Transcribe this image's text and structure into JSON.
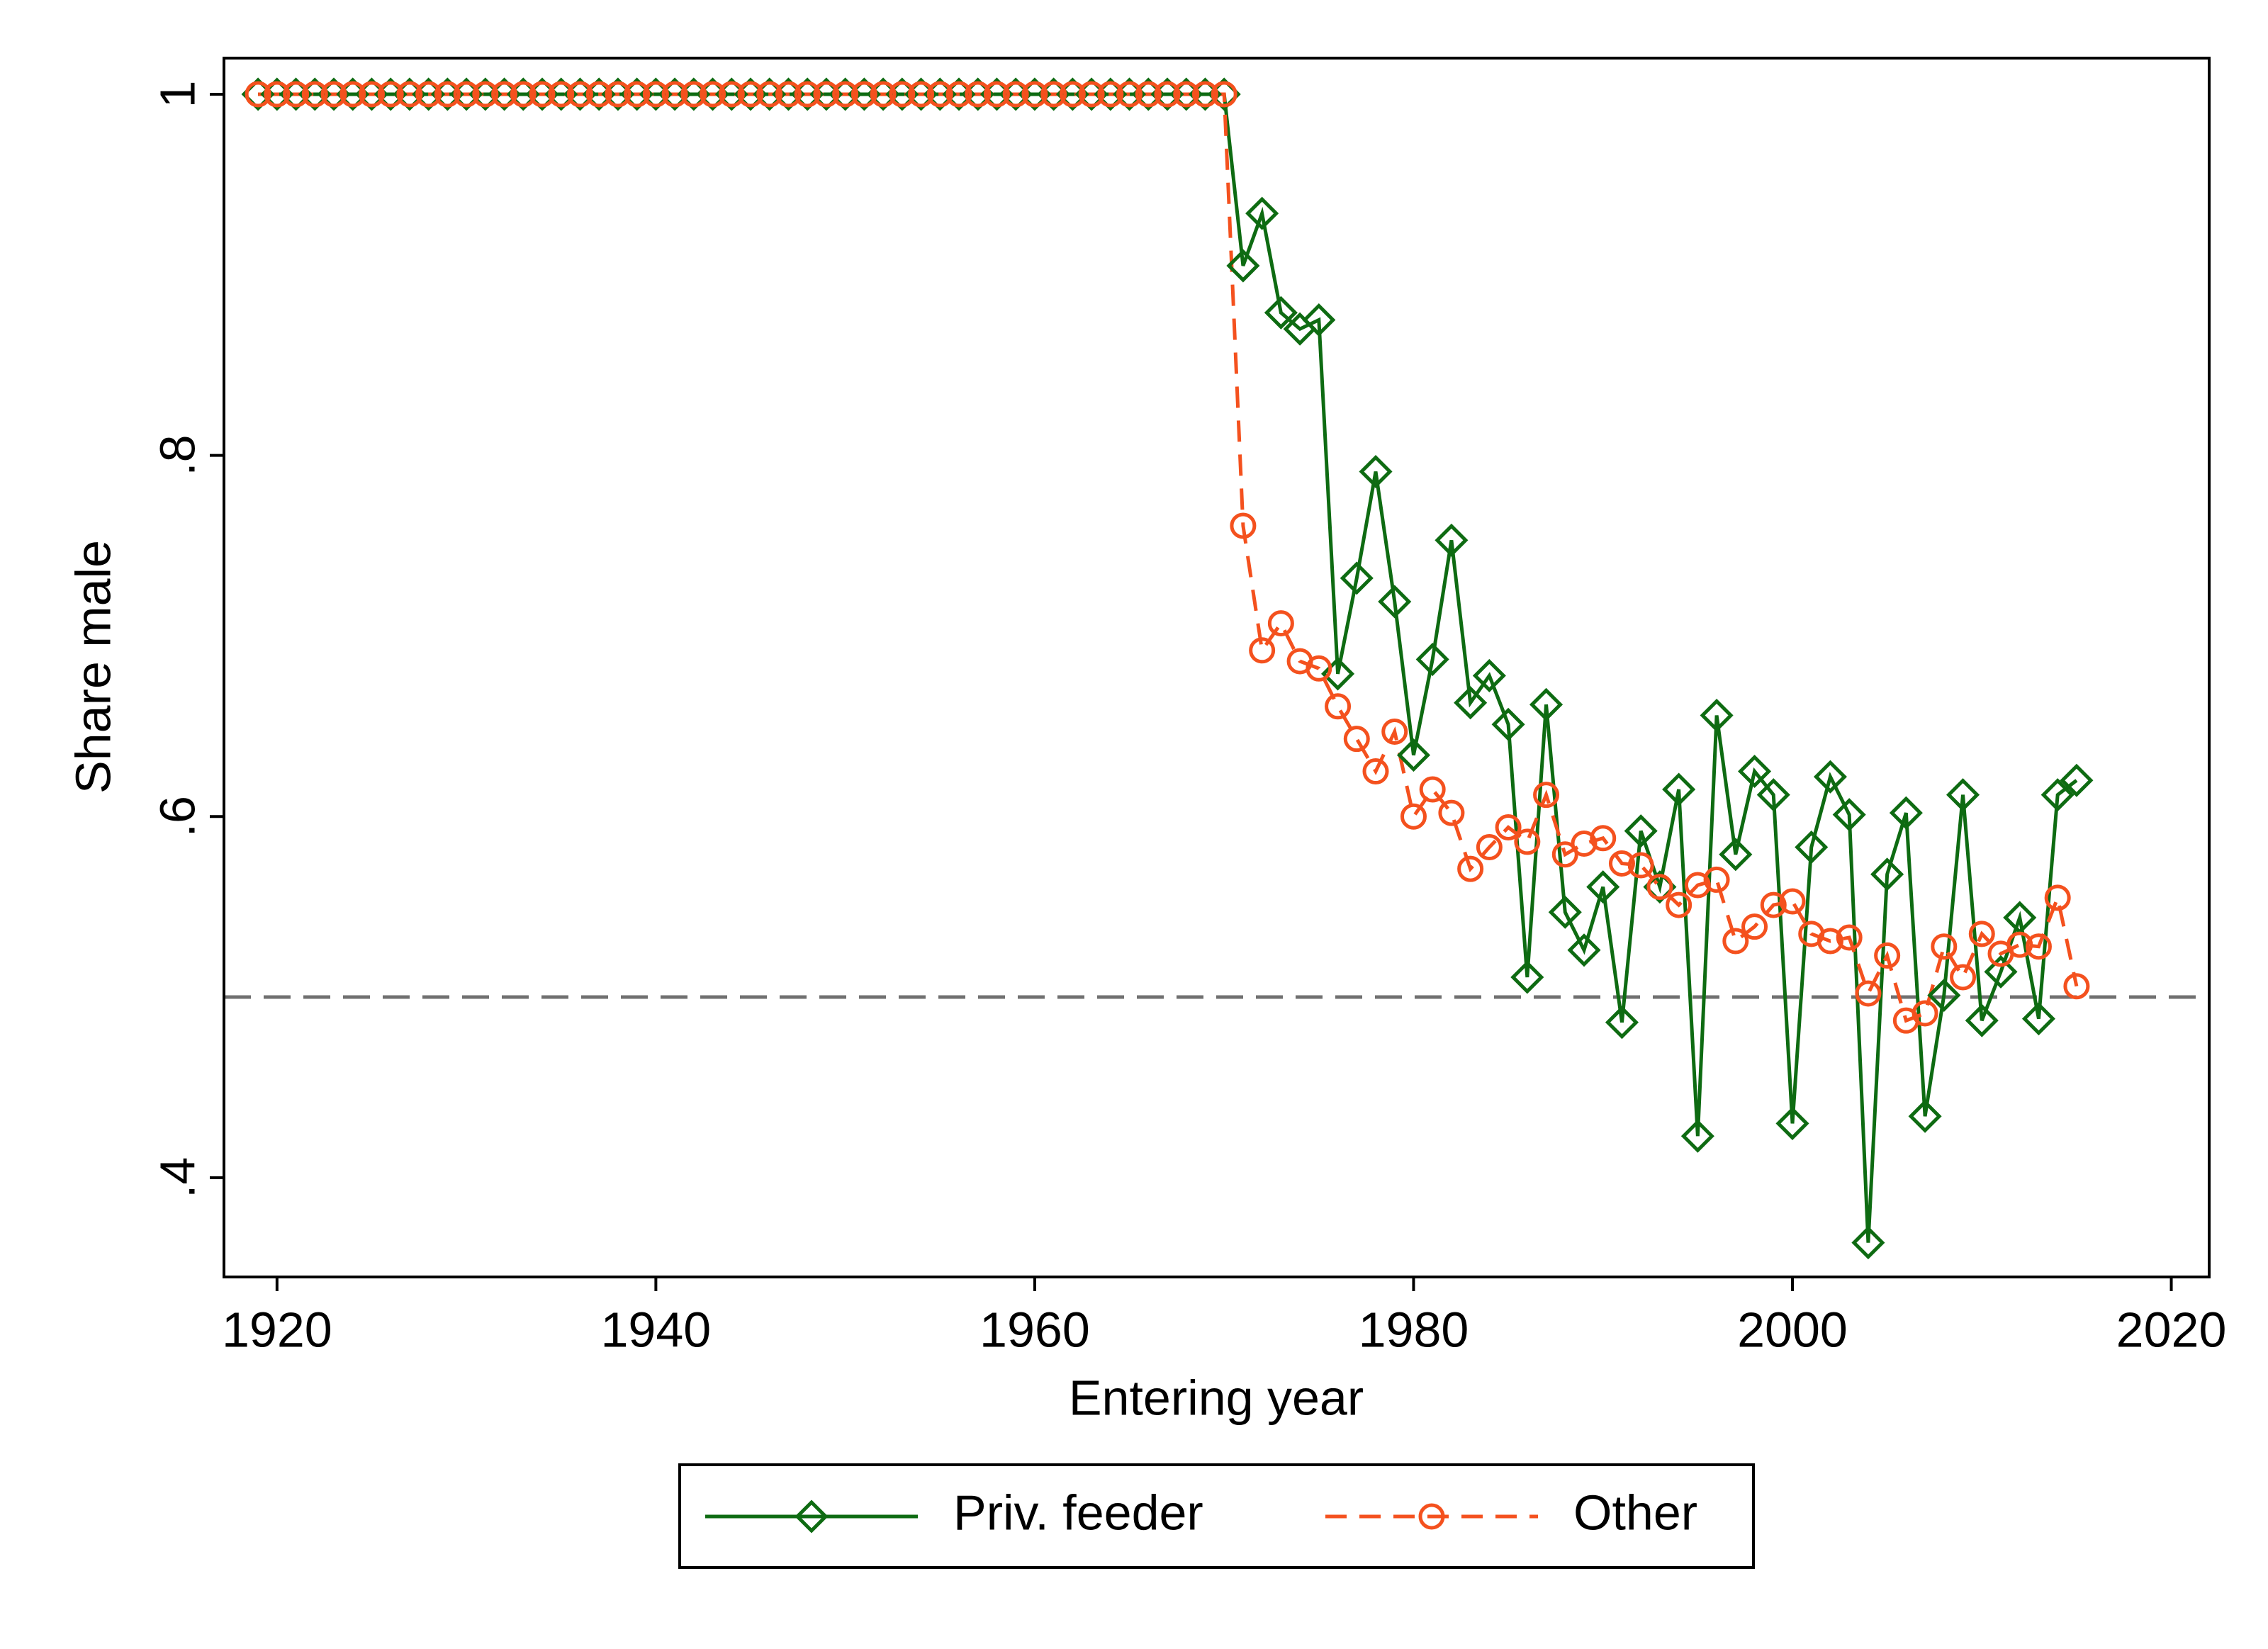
{
  "chart_data": {
    "type": "line",
    "x_label": "Entering year",
    "y_label": "Share male",
    "x": [
      1919,
      1920,
      1921,
      1922,
      1923,
      1924,
      1925,
      1926,
      1927,
      1928,
      1929,
      1930,
      1931,
      1932,
      1933,
      1934,
      1935,
      1936,
      1937,
      1938,
      1939,
      1940,
      1941,
      1942,
      1943,
      1944,
      1945,
      1946,
      1947,
      1948,
      1949,
      1950,
      1951,
      1952,
      1953,
      1954,
      1955,
      1956,
      1957,
      1958,
      1959,
      1960,
      1961,
      1962,
      1963,
      1964,
      1965,
      1966,
      1967,
      1968,
      1969,
      1970,
      1971,
      1972,
      1973,
      1974,
      1975,
      1976,
      1977,
      1978,
      1979,
      1980,
      1981,
      1982,
      1983,
      1984,
      1985,
      1986,
      1987,
      1988,
      1989,
      1990,
      1991,
      1992,
      1993,
      1994,
      1995,
      1996,
      1997,
      1998,
      1999,
      2000,
      2001,
      2002,
      2003,
      2004,
      2005,
      2006,
      2007,
      2008,
      2009,
      2010,
      2011,
      2012,
      2013,
      2014,
      2015
    ],
    "series": [
      {
        "name": "Priv. feeder",
        "color": "#0e6b12",
        "marker": "diamond",
        "line_style": "solid",
        "values": [
          1,
          1,
          1,
          1,
          1,
          1,
          1,
          1,
          1,
          1,
          1,
          1,
          1,
          1,
          1,
          1,
          1,
          1,
          1,
          1,
          1,
          1,
          1,
          1,
          1,
          1,
          1,
          1,
          1,
          1,
          1,
          1,
          1,
          1,
          1,
          1,
          1,
          1,
          1,
          1,
          1,
          1,
          1,
          1,
          1,
          1,
          1,
          1,
          1,
          1,
          1,
          1,
          0.905,
          0.934,
          0.879,
          0.87,
          0.875,
          0.679,
          0.732,
          0.791,
          0.719,
          0.634,
          0.687,
          0.753,
          0.663,
          0.678,
          0.651,
          0.511,
          0.662,
          0.547,
          0.526,
          0.561,
          0.486,
          0.592,
          0.561,
          0.615,
          0.423,
          0.656,
          0.579,
          0.625,
          0.612,
          0.43,
          0.583,
          0.622,
          0.601,
          0.364,
          0.568,
          0.602,
          0.434,
          0.501,
          0.612,
          0.487,
          0.514,
          0.544,
          0.488,
          0.612,
          0.62
        ]
      },
      {
        "name": "Other",
        "color": "#f4511e",
        "marker": "circle",
        "line_style": "dashed",
        "values": [
          1,
          1,
          1,
          1,
          1,
          1,
          1,
          1,
          1,
          1,
          1,
          1,
          1,
          1,
          1,
          1,
          1,
          1,
          1,
          1,
          1,
          1,
          1,
          1,
          1,
          1,
          1,
          1,
          1,
          1,
          1,
          1,
          1,
          1,
          1,
          1,
          1,
          1,
          1,
          1,
          1,
          1,
          1,
          1,
          1,
          1,
          1,
          1,
          1,
          1,
          1,
          1,
          0.761,
          0.692,
          0.707,
          0.686,
          0.682,
          0.661,
          0.643,
          0.625,
          0.647,
          0.6,
          0.615,
          0.602,
          0.571,
          0.583,
          0.594,
          0.586,
          0.612,
          0.579,
          0.585,
          0.588,
          0.574,
          0.573,
          0.561,
          0.551,
          0.562,
          0.565,
          0.531,
          0.539,
          0.551,
          0.553,
          0.535,
          0.531,
          0.533,
          0.502,
          0.523,
          0.487,
          0.491,
          0.528,
          0.511,
          0.535,
          0.524,
          0.529,
          0.528,
          0.555,
          0.506
        ]
      }
    ],
    "reference_line": 0.5,
    "xlim": [
      1917.2,
      2022
    ],
    "xticks": [
      1920,
      1940,
      1960,
      1980,
      2000,
      2020
    ],
    "ylim": [
      0.345,
      1.02
    ],
    "yticks": [
      {
        "value": 0.4,
        "label": ".4"
      },
      {
        "value": 0.6,
        "label": ".6"
      },
      {
        "value": 0.8,
        "label": ".8"
      },
      1
    ],
    "legend": "bottom"
  }
}
